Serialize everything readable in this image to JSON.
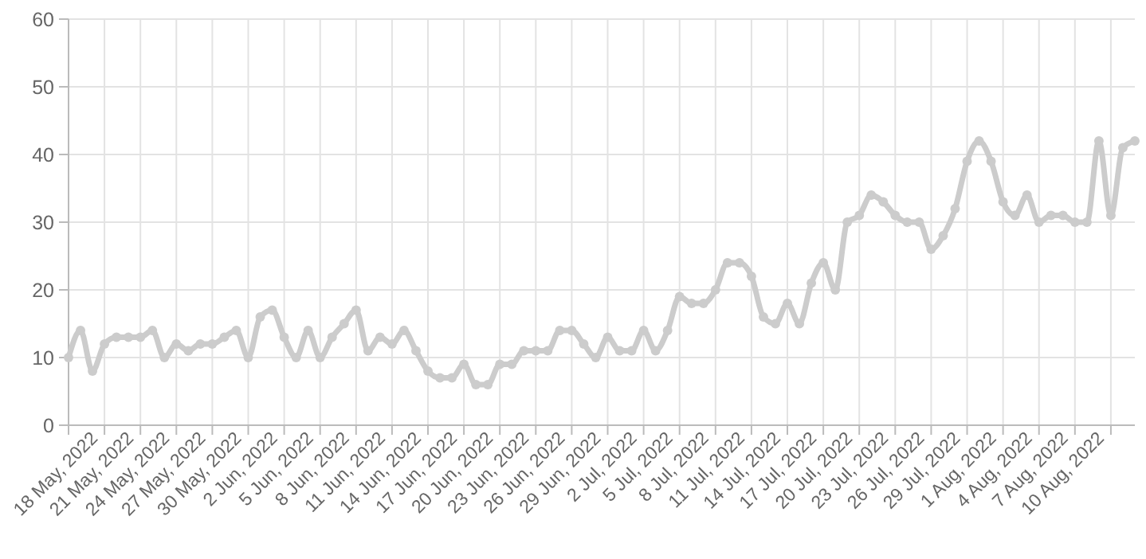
{
  "chart_data": {
    "type": "line",
    "color": "#cccccc",
    "marker": "circle",
    "grid": true,
    "xlim": [
      "2022-05-18",
      "2022-08-15"
    ],
    "ylim": [
      0,
      60
    ],
    "yticks": [
      0,
      10,
      20,
      30,
      40,
      50,
      60
    ],
    "xticks": [
      {
        "value": "2022-05-18",
        "label": "18 May, 2022"
      },
      {
        "value": "2022-05-21",
        "label": "21 May, 2022"
      },
      {
        "value": "2022-05-24",
        "label": "24 May, 2022"
      },
      {
        "value": "2022-05-27",
        "label": "27 May, 2022"
      },
      {
        "value": "2022-05-30",
        "label": "30 May, 2022"
      },
      {
        "value": "2022-06-02",
        "label": "2 Jun, 2022"
      },
      {
        "value": "2022-06-05",
        "label": "5 Jun, 2022"
      },
      {
        "value": "2022-06-08",
        "label": "8 Jun, 2022"
      },
      {
        "value": "2022-06-11",
        "label": "11 Jun, 2022"
      },
      {
        "value": "2022-06-14",
        "label": "14 Jun, 2022"
      },
      {
        "value": "2022-06-17",
        "label": "17 Jun, 2022"
      },
      {
        "value": "2022-06-20",
        "label": "20 Jun, 2022"
      },
      {
        "value": "2022-06-23",
        "label": "23 Jun, 2022"
      },
      {
        "value": "2022-06-26",
        "label": "26 Jun, 2022"
      },
      {
        "value": "2022-06-29",
        "label": "29 Jun, 2022"
      },
      {
        "value": "2022-07-02",
        "label": "2 Jul, 2022"
      },
      {
        "value": "2022-07-05",
        "label": "5 Jul, 2022"
      },
      {
        "value": "2022-07-08",
        "label": "8 Jul, 2022"
      },
      {
        "value": "2022-07-11",
        "label": "11 Jul, 2022"
      },
      {
        "value": "2022-07-14",
        "label": "14 Jul, 2022"
      },
      {
        "value": "2022-07-17",
        "label": "17 Jul, 2022"
      },
      {
        "value": "2022-07-20",
        "label": "20 Jul, 2022"
      },
      {
        "value": "2022-07-23",
        "label": "23 Jul, 2022"
      },
      {
        "value": "2022-07-26",
        "label": "26 Jul, 2022"
      },
      {
        "value": "2022-07-29",
        "label": "29 Jul, 2022"
      },
      {
        "value": "2022-08-01",
        "label": "1 Aug, 2022"
      },
      {
        "value": "2022-08-04",
        "label": "4 Aug, 2022"
      },
      {
        "value": "2022-08-07",
        "label": "7 Aug, 2022"
      },
      {
        "value": "2022-08-10",
        "label": "10 Aug, 2022"
      },
      {
        "value": "2022-08-13",
        "label": null
      }
    ],
    "x": [
      "2022-05-18",
      "2022-05-19",
      "2022-05-20",
      "2022-05-21",
      "2022-05-22",
      "2022-05-23",
      "2022-05-24",
      "2022-05-25",
      "2022-05-26",
      "2022-05-27",
      "2022-05-28",
      "2022-05-29",
      "2022-05-30",
      "2022-05-31",
      "2022-06-01",
      "2022-06-02",
      "2022-06-03",
      "2022-06-04",
      "2022-06-05",
      "2022-06-06",
      "2022-06-07",
      "2022-06-08",
      "2022-06-09",
      "2022-06-10",
      "2022-06-11",
      "2022-06-12",
      "2022-06-13",
      "2022-06-14",
      "2022-06-15",
      "2022-06-16",
      "2022-06-17",
      "2022-06-18",
      "2022-06-19",
      "2022-06-20",
      "2022-06-21",
      "2022-06-22",
      "2022-06-23",
      "2022-06-24",
      "2022-06-25",
      "2022-06-26",
      "2022-06-27",
      "2022-06-28",
      "2022-06-29",
      "2022-06-30",
      "2022-07-01",
      "2022-07-02",
      "2022-07-03",
      "2022-07-04",
      "2022-07-05",
      "2022-07-06",
      "2022-07-07",
      "2022-07-08",
      "2022-07-09",
      "2022-07-10",
      "2022-07-11",
      "2022-07-12",
      "2022-07-13",
      "2022-07-14",
      "2022-07-15",
      "2022-07-16",
      "2022-07-17",
      "2022-07-18",
      "2022-07-19",
      "2022-07-20",
      "2022-07-21",
      "2022-07-22",
      "2022-07-23",
      "2022-07-24",
      "2022-07-25",
      "2022-07-26",
      "2022-07-27",
      "2022-07-28",
      "2022-07-29",
      "2022-07-30",
      "2022-07-31",
      "2022-08-01",
      "2022-08-02",
      "2022-08-03",
      "2022-08-04",
      "2022-08-05",
      "2022-08-06",
      "2022-08-07",
      "2022-08-08",
      "2022-08-09",
      "2022-08-10",
      "2022-08-11",
      "2022-08-12",
      "2022-08-13",
      "2022-08-14",
      "2022-08-15"
    ],
    "values": [
      10,
      14,
      8,
      12,
      13,
      13,
      13,
      14,
      10,
      12,
      11,
      12,
      12,
      13,
      14,
      10,
      16,
      17,
      13,
      10,
      14,
      10,
      13,
      15,
      17,
      11,
      13,
      12,
      14,
      11,
      8,
      7,
      7,
      9,
      6,
      6,
      9,
      9,
      11,
      11,
      11,
      14,
      14,
      12,
      10,
      13,
      11,
      11,
      14,
      11,
      14,
      19,
      18,
      18,
      20,
      24,
      24,
      22,
      16,
      15,
      18,
      15,
      21,
      24,
      20,
      30,
      31,
      34,
      33,
      31,
      30,
      30,
      26,
      28,
      32,
      39,
      42,
      39,
      33,
      31,
      34,
      30,
      31,
      31,
      30,
      30,
      42,
      31,
      41,
      42
    ]
  }
}
